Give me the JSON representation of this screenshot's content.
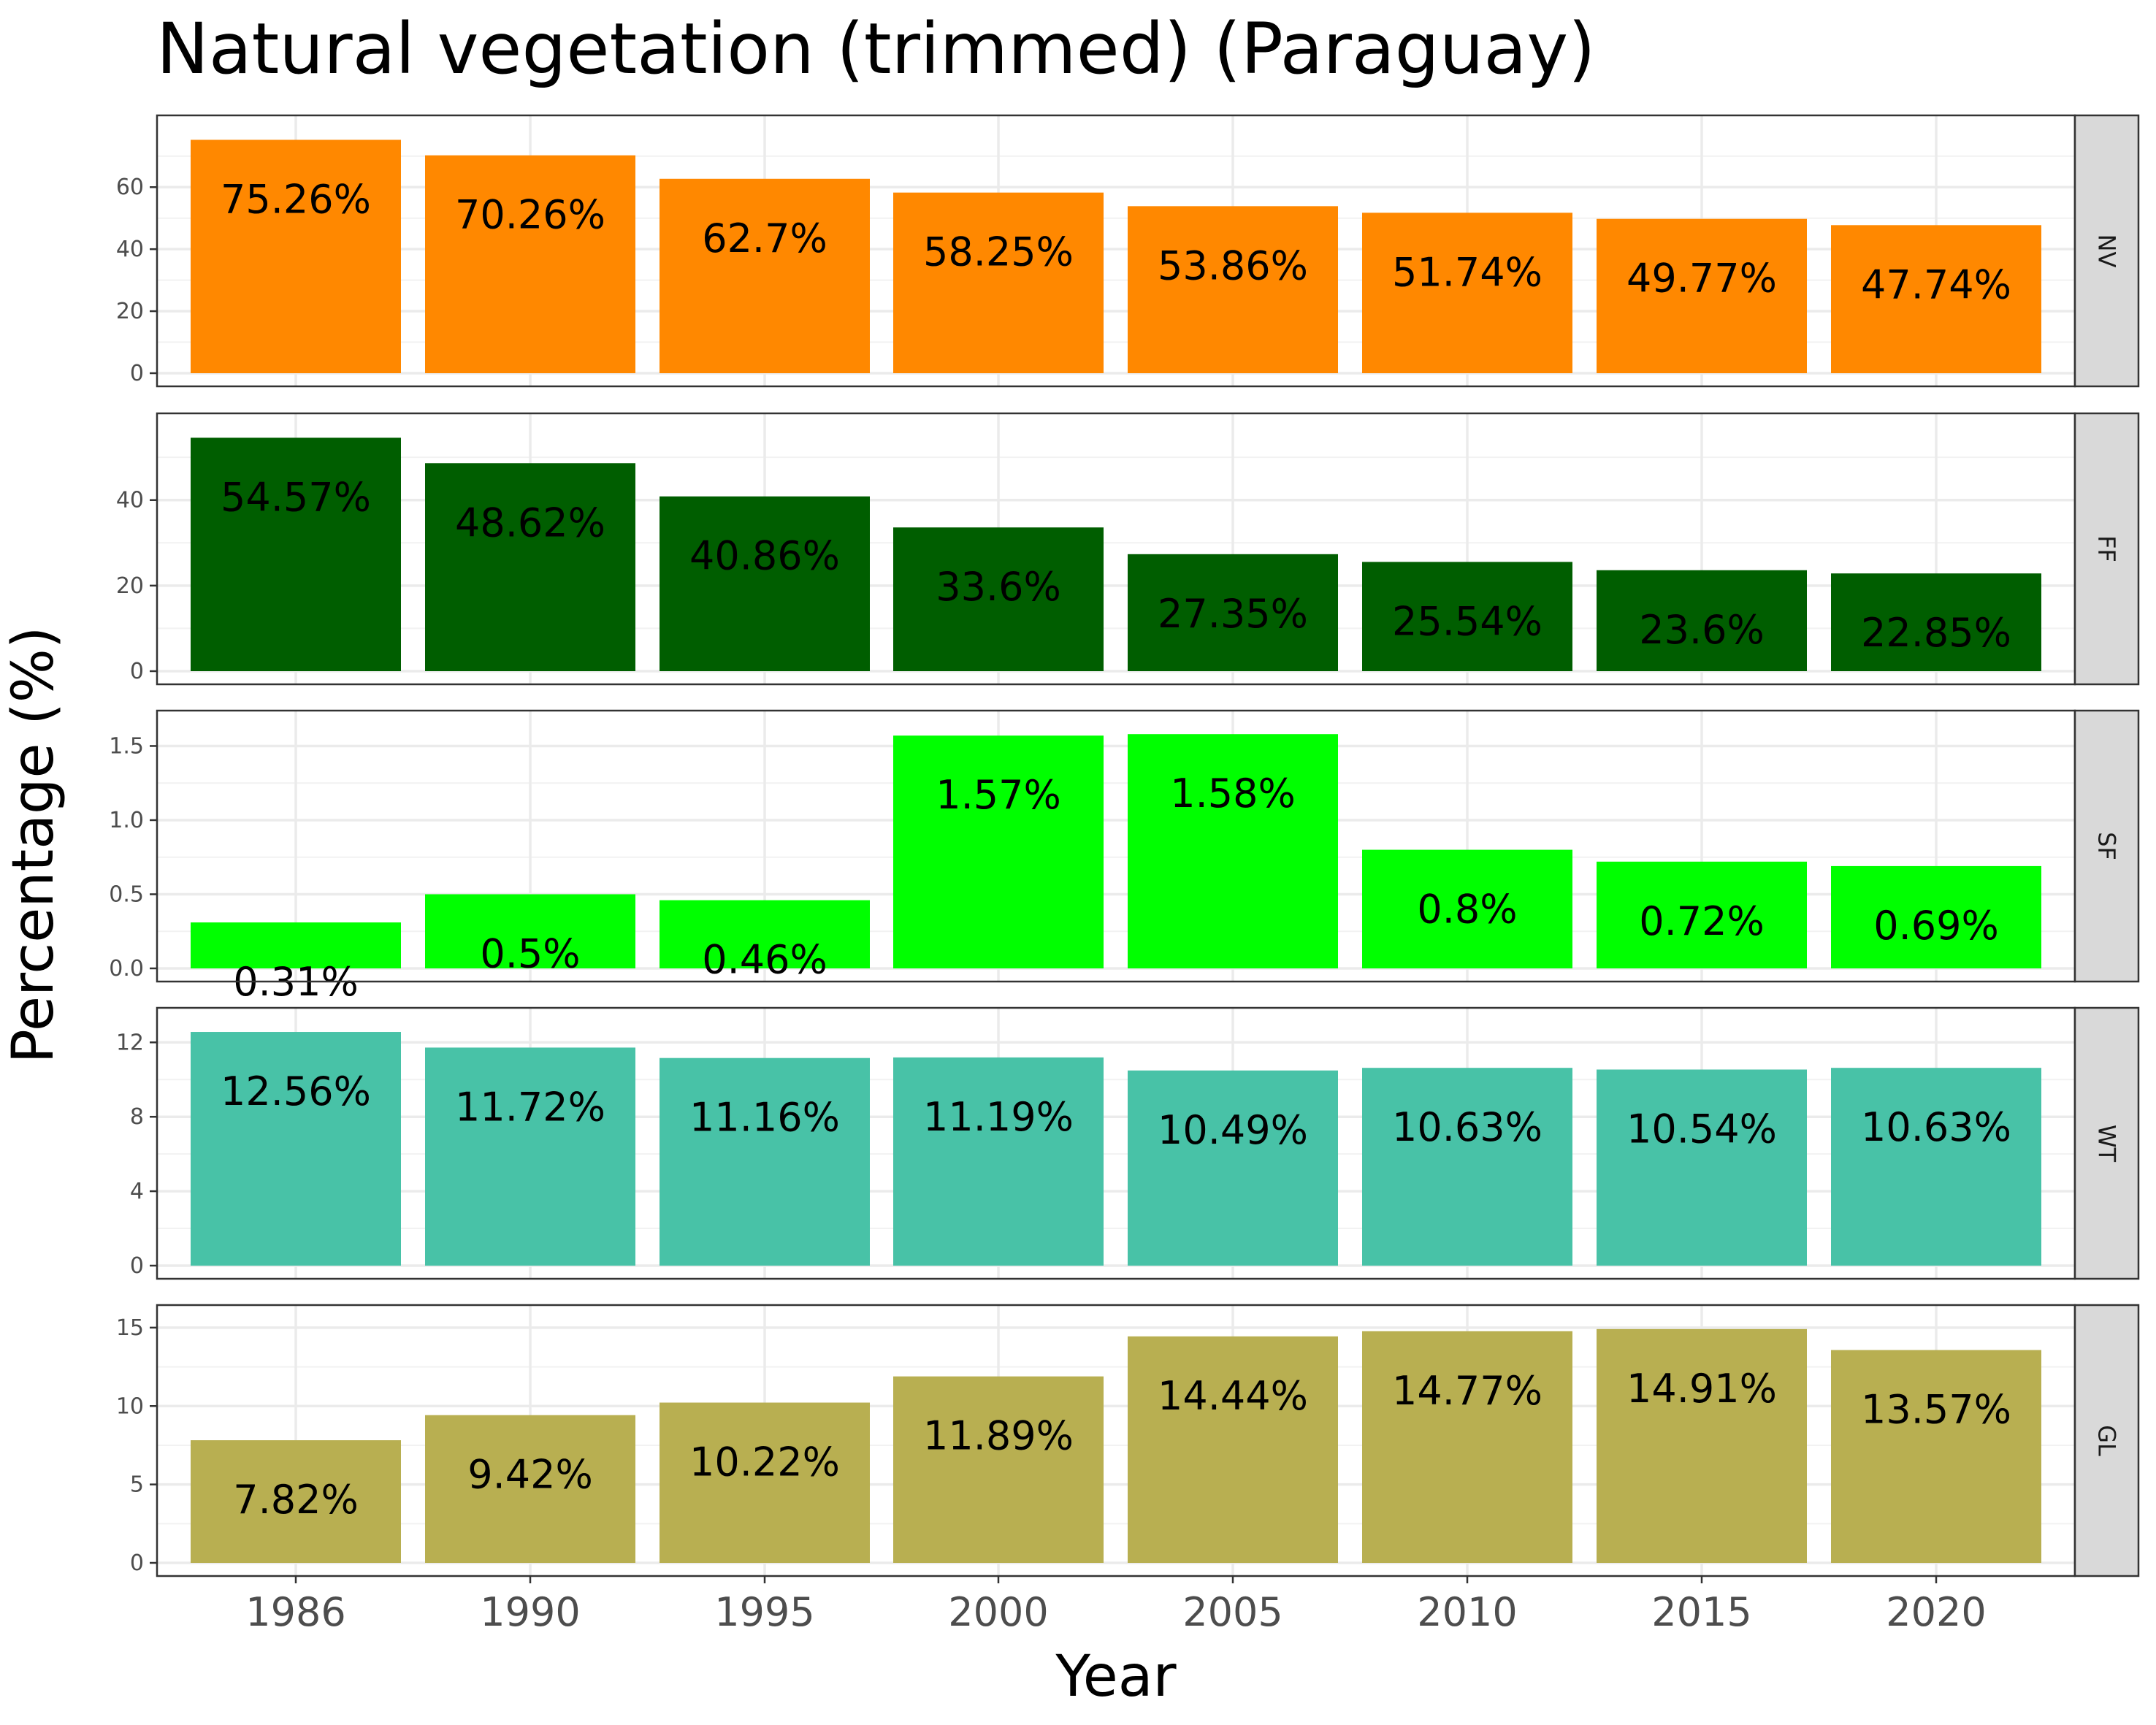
{
  "chart_data": {
    "type": "bar",
    "title": "Natural vegetation (trimmed) (Paraguay)",
    "xlabel": "Year",
    "ylabel": "Percentage (%)",
    "categories": [
      "1986",
      "1990",
      "1995",
      "2000",
      "2005",
      "2010",
      "2015",
      "2020"
    ],
    "grid": true,
    "facets": [
      {
        "strip": "NV",
        "color": "#FF8800",
        "ylim": [
          0,
          78.9
        ],
        "ticks": [
          0,
          20,
          40,
          60
        ],
        "values": [
          75.26,
          70.26,
          62.7,
          58.25,
          53.86,
          51.74,
          49.77,
          47.74
        ],
        "labels": [
          "75.26%",
          "70.26%",
          "62.7%",
          "58.25%",
          "53.86%",
          "51.74%",
          "49.77%",
          "47.74%"
        ]
      },
      {
        "strip": "FF",
        "color": "#005E00",
        "ylim": [
          0,
          57.2
        ],
        "ticks": [
          0,
          20,
          40
        ],
        "values": [
          54.57,
          48.62,
          40.86,
          33.6,
          27.35,
          25.54,
          23.6,
          22.85
        ],
        "labels": [
          "54.57%",
          "48.62%",
          "40.86%",
          "33.6%",
          "27.35%",
          "25.54%",
          "23.6%",
          "22.85%"
        ]
      },
      {
        "strip": "SF",
        "color": "#00FF00",
        "ylim": [
          0,
          1.65
        ],
        "ticks": [
          0.0,
          0.5,
          1.0,
          1.5
        ],
        "tick_labels": [
          "0.0",
          "0.5",
          "1.0",
          "1.5"
        ],
        "values": [
          0.31,
          0.5,
          0.46,
          1.57,
          1.58,
          0.8,
          0.72,
          0.69
        ],
        "labels": [
          "0.31%",
          "0.5%",
          "0.46%",
          "1.57%",
          "1.58%",
          "0.8%",
          "0.72%",
          "0.69%"
        ]
      },
      {
        "strip": "WT",
        "color": "#48C2A7",
        "ylim": [
          0,
          13.15
        ],
        "ticks": [
          0,
          4,
          8,
          12
        ],
        "values": [
          12.56,
          11.72,
          11.16,
          11.19,
          10.49,
          10.63,
          10.54,
          10.63
        ],
        "labels": [
          "12.56%",
          "11.72%",
          "11.16%",
          "11.19%",
          "10.49%",
          "10.63%",
          "10.54%",
          "10.63%"
        ]
      },
      {
        "strip": "GL",
        "color": "#B8AF51",
        "ylim": [
          0,
          15.6
        ],
        "ticks": [
          0,
          5,
          10,
          15
        ],
        "values": [
          7.82,
          9.42,
          10.22,
          11.89,
          14.44,
          14.77,
          14.91,
          13.57
        ],
        "labels": [
          "7.82%",
          "9.42%",
          "10.22%",
          "11.89%",
          "14.44%",
          "14.77%",
          "14.91%",
          "13.57%"
        ]
      }
    ]
  }
}
